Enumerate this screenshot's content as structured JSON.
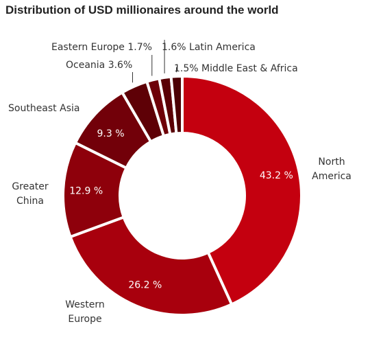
{
  "chart_data": {
    "type": "pie",
    "title": "Distribution of USD millionaires around the world",
    "series": [
      {
        "name": "North America",
        "value": 43.2,
        "value_label": "43.2 %",
        "color": "#c4000f"
      },
      {
        "name": "Western Europe",
        "value": 26.2,
        "value_label": "26.2 %",
        "color": "#a8000d"
      },
      {
        "name": "Greater China",
        "value": 12.9,
        "value_label": "12.9 %",
        "color": "#8e000b"
      },
      {
        "name": "Southeast Asia",
        "value": 9.3,
        "value_label": "9.3 %",
        "color": "#720009"
      },
      {
        "name": "Oceania",
        "value": 3.6,
        "value_label": "3.6%",
        "color": "#5e0006"
      },
      {
        "name": "Eastern Europe",
        "value": 1.7,
        "value_label": "1.7%",
        "color": "#6e0008"
      },
      {
        "name": "Latin America",
        "value": 1.6,
        "value_label": "1.6%",
        "color": "#5a0005"
      },
      {
        "name": "Middle East & Africa",
        "value": 1.5,
        "value_label": "1.5%",
        "color": "#4c0004"
      }
    ],
    "outside_labels": {
      "north_america": [
        "North",
        "America"
      ],
      "western_europe": [
        "Western",
        "Europe"
      ],
      "greater_china": [
        "Greater",
        "China"
      ],
      "southeast_asia": "Southeast Asia",
      "oceania": "Oceania 3.6%",
      "eastern_europe": "Eastern Europe 1.7%",
      "latin_america": "1.6% Latin America",
      "mea": "1.5% Middle East & Africa"
    }
  }
}
